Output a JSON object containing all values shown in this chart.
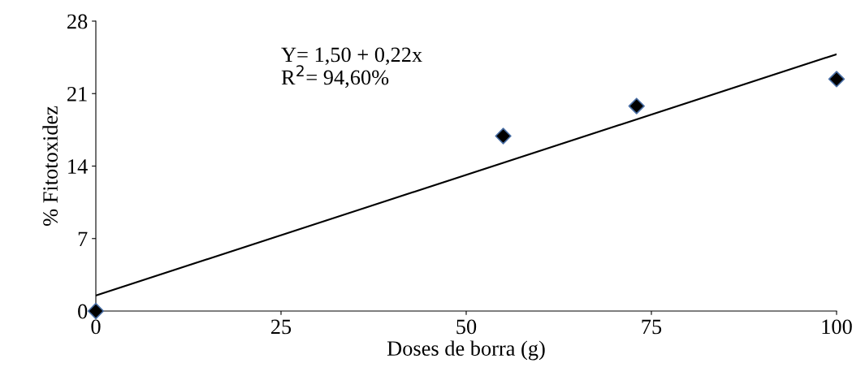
{
  "chart_data": {
    "type": "scatter",
    "xlabel": "Doses de borra (g)",
    "ylabel": "% Fitotoxidez",
    "series": [
      {
        "color": "#000000",
        "x": [
          0,
          55,
          73,
          100
        ],
        "values": [
          0,
          16.9,
          19.8,
          22.4
        ],
        "marker": "diamond"
      },
      {
        "type": "line",
        "color": "#000000",
        "x": [
          0,
          100
        ],
        "values": [
          1.5,
          24.8
        ],
        "marker": "none",
        "line_style": "solid"
      }
    ],
    "annotations": [
      "Y= 1,50 + 0,22x\nR$^{2}$= 94,60%"
    ],
    "xlim": [
      0,
      100
    ],
    "xticks": [
      0,
      25,
      50,
      75,
      100
    ],
    "ylim": [
      0,
      28
    ],
    "yticks": [
      0,
      7,
      14,
      21,
      28
    ],
    "grid": false,
    "legend": false
  }
}
